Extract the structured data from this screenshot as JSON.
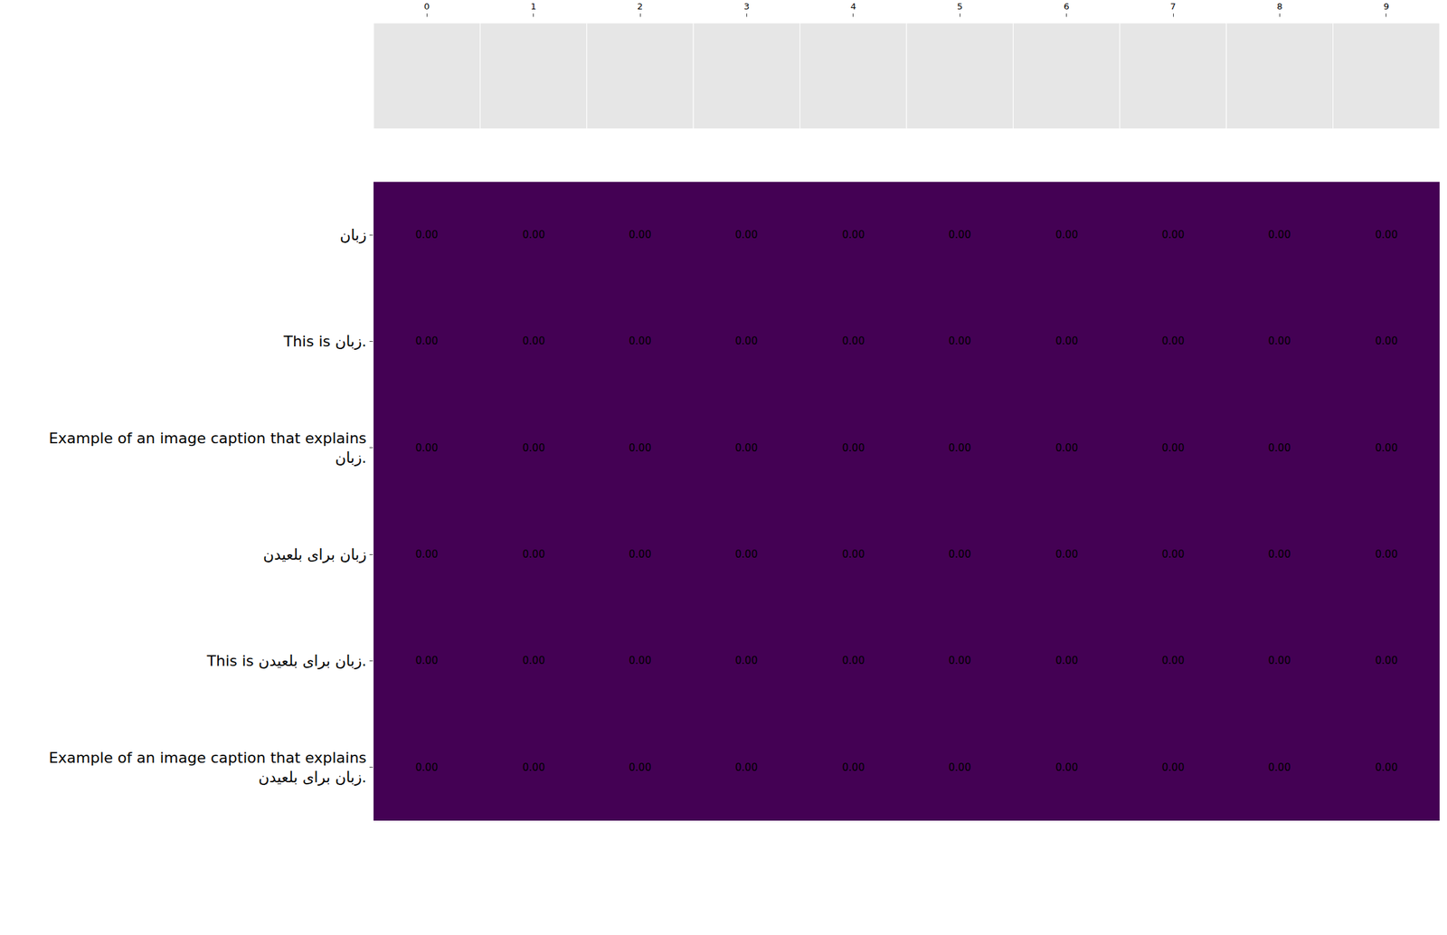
{
  "chart_data": {
    "type": "heatmap",
    "x": [
      0,
      1,
      2,
      3,
      4,
      5,
      6,
      7,
      8,
      9
    ],
    "xlim": [
      -0.5,
      9.5
    ],
    "xticks": [
      0,
      1,
      2,
      3,
      4,
      5,
      6,
      7,
      8,
      9
    ],
    "rows": [
      "زبان",
      "This is زبان.",
      "Example of an image caption that explains\nزبان.",
      "زبان برای بلعیدن",
      "This is زبان برای بلعیدن.",
      "Example of an image caption that explains\nزبان برای بلعیدن."
    ],
    "values": [
      [
        0,
        0,
        0,
        0,
        0,
        0,
        0,
        0,
        0,
        0
      ],
      [
        0,
        0,
        0,
        0,
        0,
        0,
        0,
        0,
        0,
        0
      ],
      [
        0,
        0,
        0,
        0,
        0,
        0,
        0,
        0,
        0,
        0
      ],
      [
        0,
        0,
        0,
        0,
        0,
        0,
        0,
        0,
        0,
        0
      ],
      [
        0,
        0,
        0,
        0,
        0,
        0,
        0,
        0,
        0,
        0
      ],
      [
        0,
        0,
        0,
        0,
        0,
        0,
        0,
        0,
        0,
        0
      ]
    ],
    "value_labels": [
      [
        "0.00",
        "0.00",
        "0.00",
        "0.00",
        "0.00",
        "0.00",
        "0.00",
        "0.00",
        "0.00",
        "0.00"
      ],
      [
        "0.00",
        "0.00",
        "0.00",
        "0.00",
        "0.00",
        "0.00",
        "0.00",
        "0.00",
        "0.00",
        "0.00"
      ],
      [
        "0.00",
        "0.00",
        "0.00",
        "0.00",
        "0.00",
        "0.00",
        "0.00",
        "0.00",
        "0.00",
        "0.00"
      ],
      [
        "0.00",
        "0.00",
        "0.00",
        "0.00",
        "0.00",
        "0.00",
        "0.00",
        "0.00",
        "0.00",
        "0.00"
      ],
      [
        "0.00",
        "0.00",
        "0.00",
        "0.00",
        "0.00",
        "0.00",
        "0.00",
        "0.00",
        "0.00",
        "0.00"
      ],
      [
        "0.00",
        "0.00",
        "0.00",
        "0.00",
        "0.00",
        "0.00",
        "0.00",
        "0.00",
        "0.00",
        "0.00"
      ]
    ],
    "data_labels": true,
    "color": "#440154",
    "grid": false
  }
}
